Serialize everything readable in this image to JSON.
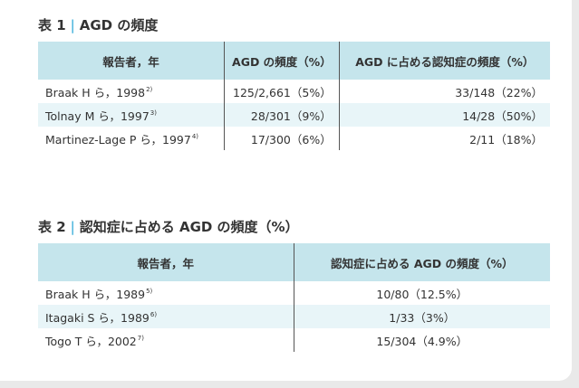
{
  "table1": {
    "num": "表 1",
    "sep": "|",
    "title": "AGD の頻度",
    "headers": [
      "報告者，年",
      "AGD の頻度（%）",
      "AGD に占める認知症の頻度（%）"
    ],
    "rows": [
      {
        "author": "Braak H ら，1998",
        "ref": "2)",
        "agd": "125/2,661（5%）",
        "dementia": "33/148（22%）"
      },
      {
        "author": "Tolnay M ら，1997",
        "ref": "3)",
        "agd": "28/301（9%）",
        "dementia": "14/28（50%）"
      },
      {
        "author": "Martinez-Lage P ら，1997",
        "ref": "4)",
        "agd": "17/300（6%）",
        "dementia": "2/11（18%）"
      }
    ]
  },
  "table2": {
    "num": "表 2",
    "sep": "|",
    "title": "認知症に占める AGD の頻度（%）",
    "headers": [
      "報告者，年",
      "認知症に占める AGD の頻度（%）"
    ],
    "rows": [
      {
        "author": "Braak H ら，1989",
        "ref": "5)",
        "value": "10/80（12.5%）"
      },
      {
        "author": "Itagaki S ら，1989",
        "ref": "6)",
        "value": "1/33（3%）"
      },
      {
        "author": "Togo T ら，2002",
        "ref": "7)",
        "value": "15/304（4.9%）"
      }
    ]
  }
}
